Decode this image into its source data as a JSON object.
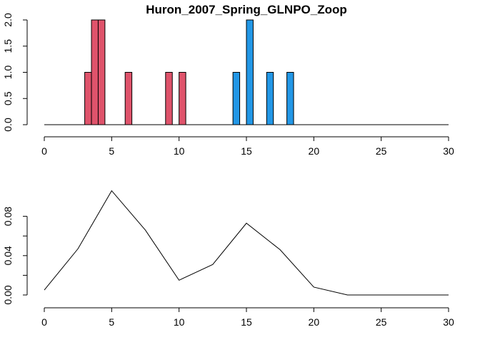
{
  "chart_data": [
    {
      "type": "bar",
      "title": "Huron_2007_Spring_GLNPO_Zoop",
      "xlabel": "",
      "ylabel": "",
      "xlim": [
        0,
        30
      ],
      "ylim": [
        0,
        2
      ],
      "x_ticks": [
        0,
        5,
        10,
        15,
        20,
        25,
        30
      ],
      "x_tick_labels": [
        "0",
        "5",
        "10",
        "15",
        "20",
        "25",
        "30"
      ],
      "y_ticks": [
        0,
        0.5,
        1,
        1.5,
        2
      ],
      "y_tick_labels": [
        "0.0",
        "0.5",
        "1.0",
        "1.5",
        "2.0"
      ],
      "bar_width": 0.5,
      "colors": {
        "group1": "#DF536B",
        "group2": "#2297E6"
      },
      "series": [
        {
          "color_key": "group1",
          "x": [
            3.25,
            3.75,
            4.25,
            6.25,
            9.25,
            10.25
          ],
          "values": [
            1,
            2,
            2,
            1,
            1,
            1
          ]
        },
        {
          "color_key": "group2",
          "x": [
            14.25,
            15.25,
            16.75,
            18.25
          ],
          "values": [
            1,
            2,
            1,
            1
          ]
        }
      ]
    },
    {
      "type": "line",
      "title": "",
      "xlabel": "",
      "ylabel": "",
      "xlim": [
        0,
        30
      ],
      "ylim": [
        0,
        0.1
      ],
      "x_ticks": [
        0,
        5,
        10,
        15,
        20,
        25,
        30
      ],
      "x_tick_labels": [
        "0",
        "5",
        "10",
        "15",
        "20",
        "25",
        "30"
      ],
      "y_ticks": [
        0,
        0.02,
        0.04,
        0.06,
        0.08
      ],
      "y_tick_labels": [
        "0.00",
        "",
        "0.04",
        "",
        "0.08"
      ],
      "series": [
        {
          "x": [
            0,
            2.5,
            5,
            7.5,
            10,
            12.5,
            15,
            17.5,
            20,
            22.5,
            25,
            27.5,
            30
          ],
          "values": [
            0.005,
            0.047,
            0.106,
            0.066,
            0.015,
            0.031,
            0.073,
            0.046,
            0.008,
            0.0,
            0.0,
            0.0,
            0.0
          ]
        }
      ]
    }
  ]
}
